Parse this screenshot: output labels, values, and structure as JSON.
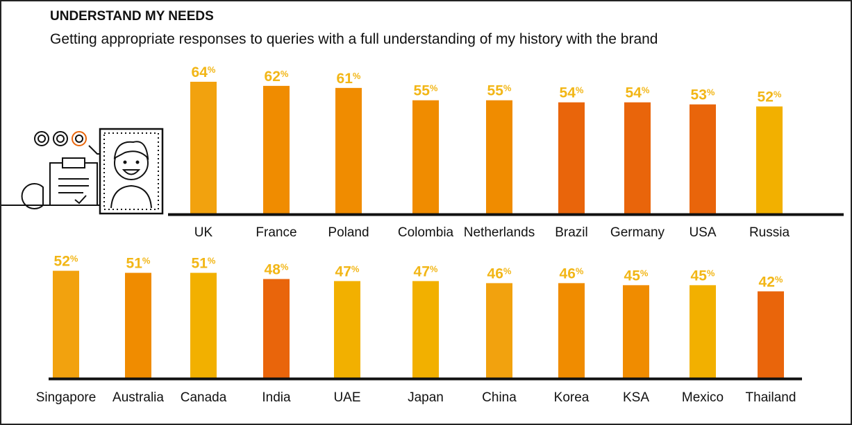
{
  "title": "UNDERSTAND MY NEEDS",
  "subtitle": "Getting appropriate responses to queries with a full understanding of my history with the brand",
  "chart_data": [
    {
      "type": "bar",
      "categories": [
        "UK",
        "France",
        "Poland",
        "Colombia",
        "Netherlands",
        "Brazil",
        "Germany",
        "USA",
        "Russia"
      ],
      "values": [
        64,
        62,
        61,
        55,
        55,
        54,
        54,
        53,
        52
      ],
      "value_labels": [
        "64%",
        "62%",
        "61%",
        "55%",
        "55%",
        "54%",
        "54%",
        "53%",
        "52%"
      ],
      "colors": [
        "#f2a20e",
        "#f08c00",
        "#f08c00",
        "#f08c00",
        "#f08c00",
        "#e9650b",
        "#e9650b",
        "#e9650b",
        "#f2b000"
      ],
      "ylim": [
        0,
        100
      ]
    },
    {
      "type": "bar",
      "categories": [
        "Singapore",
        "Australia",
        "Canada",
        "India",
        "UAE",
        "Japan",
        "China",
        "Korea",
        "KSA",
        "Mexico",
        "Thailand"
      ],
      "values": [
        52,
        51,
        51,
        48,
        47,
        47,
        46,
        46,
        45,
        45,
        42
      ],
      "value_labels": [
        "52%",
        "51%",
        "51%",
        "48%",
        "47%",
        "47%",
        "46%",
        "46%",
        "45%",
        "45%",
        "42%"
      ],
      "colors": [
        "#f2a20e",
        "#f08c00",
        "#f2b000",
        "#e9650b",
        "#f2b000",
        "#f2b000",
        "#f2a20e",
        "#f08c00",
        "#f08c00",
        "#f2b000",
        "#e9650b"
      ],
      "ylim": [
        0,
        100
      ]
    }
  ]
}
